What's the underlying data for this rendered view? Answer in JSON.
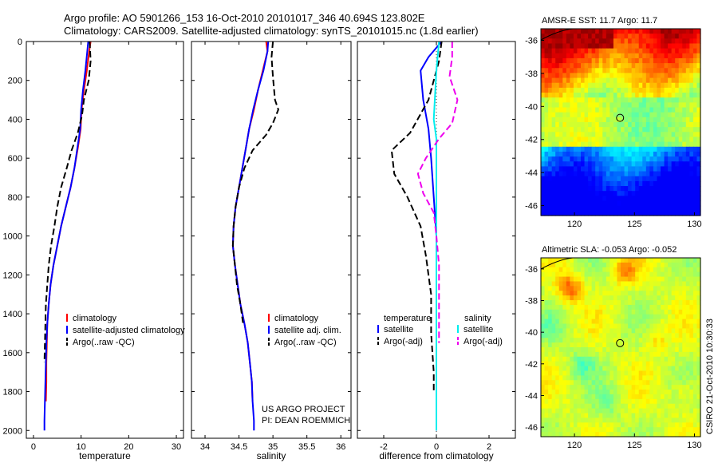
{
  "header": {
    "line1": "Argo profile: AO 5901266_153 16-Oct-2010 20101017_346 40.694S 123.802E",
    "line2": "Climatology: CARS2009. Satellite-adjusted climatology: synTS_20101015.nc (1.8d earlier)"
  },
  "footer": {
    "project": "US ARGO PROJECT",
    "pi": "PI: DEAN ROEMMICH",
    "timestamp": "CSIRO 21-Oct-2010 10:30:33"
  },
  "colors": {
    "climatology": "#ff0000",
    "satellite": "#0000ff",
    "argo": "#000000",
    "sat_salinity": "#00eeee",
    "argo_salinity": "#ee00ee"
  },
  "chart_data": [
    {
      "id": "temperature",
      "type": "line",
      "xlabel": "temperature",
      "xlim": [
        -1.5,
        31.5
      ],
      "xticks": [
        0,
        10,
        20,
        30
      ],
      "xtick_labels": [
        "0",
        "10",
        "20",
        "30"
      ],
      "ylim": [
        2040,
        0
      ],
      "yticks": [
        0,
        200,
        400,
        600,
        800,
        1000,
        1200,
        1400,
        1600,
        1800,
        2000
      ],
      "ytick_labels": [
        "0",
        "200",
        "400",
        "600",
        "800",
        "1000",
        "1200",
        "1400",
        "1600",
        "1800",
        "2000"
      ],
      "legend": [
        "climatology",
        "satellite-adjusted climatology",
        "Argo(..raw -QC)"
      ],
      "series": [
        {
          "name": "climatology",
          "color": "#ff0000",
          "dash": "",
          "points": [
            [
              12.0,
              0
            ],
            [
              11.7,
              50
            ],
            [
              11.2,
              150
            ],
            [
              10.6,
              250
            ],
            [
              10.1,
              350
            ],
            [
              9.9,
              450
            ],
            [
              9.3,
              550
            ],
            [
              8.6,
              650
            ],
            [
              7.8,
              750
            ],
            [
              6.8,
              850
            ],
            [
              5.8,
              950
            ],
            [
              5.0,
              1050
            ],
            [
              4.2,
              1150
            ],
            [
              3.6,
              1250
            ],
            [
              3.2,
              1350
            ],
            [
              2.9,
              1450
            ],
            [
              2.8,
              1550
            ],
            [
              2.7,
              1650
            ],
            [
              2.7,
              1750
            ],
            [
              2.6,
              1850
            ]
          ]
        },
        {
          "name": "satellite-adjusted climatology",
          "color": "#0000ff",
          "dash": "",
          "points": [
            [
              11.5,
              0
            ],
            [
              11.3,
              50
            ],
            [
              10.9,
              150
            ],
            [
              10.4,
              250
            ],
            [
              10.0,
              350
            ],
            [
              9.8,
              450
            ],
            [
              9.2,
              550
            ],
            [
              8.6,
              650
            ],
            [
              7.8,
              750
            ],
            [
              6.8,
              850
            ],
            [
              5.8,
              950
            ],
            [
              5.0,
              1050
            ],
            [
              4.2,
              1150
            ],
            [
              3.6,
              1250
            ],
            [
              3.2,
              1350
            ],
            [
              2.9,
              1450
            ],
            [
              2.7,
              1550
            ],
            [
              2.6,
              1650
            ],
            [
              2.5,
              1750
            ],
            [
              2.4,
              1850
            ],
            [
              2.3,
              1950
            ],
            [
              2.3,
              2000
            ]
          ]
        },
        {
          "name": "Argo(..raw -QC)",
          "color": "#000000",
          "dash": "8 4",
          "points": [
            [
              11.8,
              0
            ],
            [
              12.0,
              100
            ],
            [
              11.6,
              200
            ],
            [
              10.6,
              300
            ],
            [
              10.2,
              380
            ],
            [
              9.3,
              470
            ],
            [
              8.0,
              560
            ],
            [
              7.0,
              650
            ],
            [
              5.8,
              750
            ],
            [
              5.0,
              850
            ],
            [
              4.4,
              950
            ],
            [
              3.7,
              1050
            ],
            [
              3.2,
              1150
            ],
            [
              2.9,
              1250
            ],
            [
              2.6,
              1350
            ],
            [
              2.5,
              1450
            ],
            [
              2.4,
              1550
            ],
            [
              2.3,
              1650
            ]
          ]
        }
      ]
    },
    {
      "id": "salinity",
      "type": "line",
      "xlabel": "salinity",
      "xlim": [
        33.8,
        36.15
      ],
      "xticks": [
        34,
        34.5,
        35,
        35.5,
        36
      ],
      "xtick_labels": [
        "34",
        "34.5",
        "35",
        "35.5",
        "36"
      ],
      "ylim": [
        2040,
        0
      ],
      "yticks": [
        0,
        200,
        400,
        600,
        800,
        1000,
        1200,
        1400,
        1600,
        1800,
        2000
      ],
      "ytick_labels": [],
      "legend": [
        "climatology",
        "satellite adj. clim.",
        "Argo(..raw -QC)"
      ],
      "series": [
        {
          "name": "climatology",
          "color": "#ff0000",
          "dash": "",
          "points": [
            [
              34.9,
              0
            ],
            [
              34.92,
              50
            ],
            [
              34.85,
              150
            ],
            [
              34.78,
              250
            ],
            [
              34.72,
              350
            ],
            [
              34.65,
              450
            ],
            [
              34.6,
              550
            ],
            [
              34.55,
              650
            ],
            [
              34.5,
              750
            ],
            [
              34.45,
              850
            ],
            [
              34.42,
              950
            ],
            [
              34.41,
              1050
            ],
            [
              34.44,
              1150
            ],
            [
              34.48,
              1250
            ],
            [
              34.52,
              1350
            ],
            [
              34.58,
              1450
            ],
            [
              34.63,
              1550
            ],
            [
              34.66,
              1650
            ],
            [
              34.69,
              1750
            ],
            [
              34.7,
              1850
            ]
          ]
        },
        {
          "name": "satellite adj. clim.",
          "color": "#0000ff",
          "dash": "",
          "points": [
            [
              34.93,
              0
            ],
            [
              34.92,
              50
            ],
            [
              34.86,
              150
            ],
            [
              34.78,
              250
            ],
            [
              34.71,
              350
            ],
            [
              34.65,
              450
            ],
            [
              34.6,
              550
            ],
            [
              34.55,
              650
            ],
            [
              34.5,
              750
            ],
            [
              34.45,
              850
            ],
            [
              34.42,
              950
            ],
            [
              34.41,
              1050
            ],
            [
              34.44,
              1150
            ],
            [
              34.48,
              1250
            ],
            [
              34.52,
              1350
            ],
            [
              34.58,
              1450
            ],
            [
              34.63,
              1550
            ],
            [
              34.66,
              1650
            ],
            [
              34.69,
              1750
            ],
            [
              34.7,
              1850
            ],
            [
              34.72,
              1950
            ],
            [
              34.72,
              2000
            ]
          ]
        },
        {
          "name": "Argo(..raw -QC)",
          "color": "#000000",
          "dash": "8 4",
          "points": [
            [
              35.0,
              0
            ],
            [
              34.98,
              80
            ],
            [
              35.0,
              180
            ],
            [
              35.03,
              300
            ],
            [
              35.08,
              350
            ],
            [
              35.0,
              420
            ],
            [
              34.9,
              480
            ],
            [
              34.7,
              560
            ],
            [
              34.58,
              650
            ],
            [
              34.5,
              750
            ],
            [
              34.45,
              850
            ],
            [
              34.42,
              950
            ],
            [
              34.41,
              1050
            ],
            [
              34.44,
              1150
            ],
            [
              34.47,
              1250
            ],
            [
              34.52,
              1350
            ],
            [
              34.56,
              1450
            ]
          ]
        }
      ]
    },
    {
      "id": "difference",
      "type": "line",
      "xlabel": "difference from climatology",
      "xlim": [
        -3.0,
        3.0
      ],
      "xticks": [
        -2,
        0,
        2
      ],
      "xtick_labels": [
        "-2",
        "0",
        "2"
      ],
      "ylim": [
        2040,
        0
      ],
      "yticks": [
        0,
        200,
        400,
        600,
        800,
        1000,
        1200,
        1400,
        1600,
        1800,
        2000
      ],
      "ytick_labels": [],
      "legend_title_left": "temperature",
      "legend_title_right": "salinity",
      "legend": [
        "satellite",
        "Argo(-adj)",
        "satellite",
        "Argo(-adj)"
      ],
      "series": [
        {
          "name": "temperature satellite",
          "color": "#0000ff",
          "dash": "",
          "points": [
            [
              0.2,
              0
            ],
            [
              -0.3,
              80
            ],
            [
              -0.6,
              150
            ],
            [
              -0.5,
              300
            ],
            [
              -0.3,
              450
            ],
            [
              -0.2,
              600
            ],
            [
              -0.1,
              800
            ],
            [
              0.0,
              1000
            ],
            [
              0.0,
              1500
            ],
            [
              0.0,
              2000
            ]
          ]
        },
        {
          "name": "temperature Argo(-adj)",
          "color": "#000000",
          "dash": "8 4",
          "points": [
            [
              0.2,
              0
            ],
            [
              0.1,
              100
            ],
            [
              -0.3,
              300
            ],
            [
              -1.0,
              470
            ],
            [
              -1.7,
              560
            ],
            [
              -1.6,
              680
            ],
            [
              -1.1,
              800
            ],
            [
              -0.6,
              950
            ],
            [
              -0.4,
              1100
            ],
            [
              -0.2,
              1300
            ],
            [
              -0.2,
              1500
            ],
            [
              -0.1,
              1700
            ],
            [
              -0.1,
              1800
            ]
          ]
        },
        {
          "name": "salinity satellite",
          "color": "#00eeee",
          "dash": "",
          "points": [
            [
              0.1,
              0
            ],
            [
              0.0,
              150
            ],
            [
              -0.1,
              400
            ],
            [
              0.0,
              500
            ],
            [
              0.0,
              800
            ],
            [
              0.0,
              1200
            ],
            [
              0.0,
              1600
            ],
            [
              0.0,
              2000
            ]
          ]
        },
        {
          "name": "salinity Argo(-adj)",
          "color": "#ee00ee",
          "dash": "8 4",
          "points": [
            [
              0.6,
              0
            ],
            [
              0.6,
              80
            ],
            [
              0.5,
              180
            ],
            [
              0.8,
              300
            ],
            [
              0.6,
              420
            ],
            [
              0.1,
              500
            ],
            [
              -0.4,
              600
            ],
            [
              -0.7,
              680
            ],
            [
              -0.5,
              780
            ],
            [
              -0.1,
              880
            ],
            [
              0.0,
              1000
            ],
            [
              0.1,
              1150
            ],
            [
              0.1,
              1400
            ],
            [
              0.1,
              1550
            ]
          ]
        }
      ]
    },
    {
      "id": "sst_map",
      "type": "heatmap",
      "title": "AMSR-E SST: 11.7 Argo: 11.7",
      "xticks": [
        120,
        125,
        130
      ],
      "xtick_labels": [
        "120",
        "125",
        "130"
      ],
      "xlim": [
        117.2,
        130.5
      ],
      "ylim": [
        -46.6,
        -35.3
      ],
      "yticks": [
        -36,
        -38,
        -40,
        -42,
        -44,
        -46
      ],
      "ytick_labels": [
        "-36",
        "-38",
        "-40",
        "-42",
        "-44",
        "-46"
      ],
      "marker": {
        "lon": 123.8,
        "lat": -40.69
      }
    },
    {
      "id": "sla_map",
      "type": "heatmap",
      "title": "Altimetric SLA: -0.053 Argo: -0.052",
      "xticks": [
        120,
        125,
        130
      ],
      "xtick_labels": [
        "120",
        "125",
        "130"
      ],
      "xlim": [
        117.2,
        130.5
      ],
      "ylim": [
        -46.6,
        -35.3
      ],
      "yticks": [
        -36,
        -38,
        -40,
        -42,
        -44,
        -46
      ],
      "ytick_labels": [
        "-36",
        "-38",
        "-40",
        "-42",
        "-44",
        "-46"
      ],
      "marker": {
        "lon": 123.8,
        "lat": -40.69
      }
    }
  ]
}
